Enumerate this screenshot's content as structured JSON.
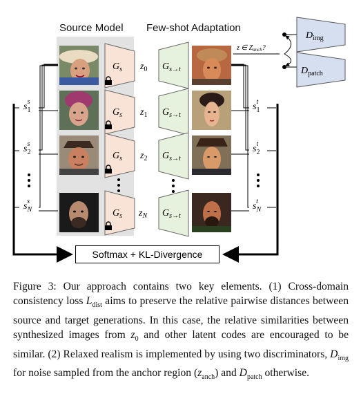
{
  "figure": {
    "source_header": "Source Model",
    "adapt_header": "Few-shot Adaptation",
    "gen_source": "G",
    "gen_source_sub": "s",
    "gen_adapt": "G",
    "gen_adapt_sub": "s→t",
    "latents": [
      {
        "base": "z",
        "sub": "0"
      },
      {
        "base": "z",
        "sub": "1"
      },
      {
        "base": "z",
        "sub": "2"
      },
      {
        "base": "z",
        "sub": "N"
      }
    ],
    "source_sims": [
      {
        "base": "s",
        "sub": "1",
        "sup": "s"
      },
      {
        "base": "s",
        "sub": "2",
        "sup": "s"
      },
      {
        "base": "s",
        "sub": "N",
        "sup": "s"
      }
    ],
    "target_sims": [
      {
        "base": "s",
        "sub": "1",
        "sup": "t"
      },
      {
        "base": "s",
        "sub": "2",
        "sup": "t"
      },
      {
        "base": "s",
        "sub": "N",
        "sup": "t"
      }
    ],
    "loss_box": "Softmax + KL-Divergence",
    "condition": "z ∈ Z",
    "condition_sub": "anch",
    "condition_q": "?",
    "disc_img": "D",
    "disc_img_sub": "img",
    "disc_patch": "D",
    "disc_patch_sub": "patch",
    "colors": {
      "source_panel": "#e2e2e2",
      "source_gen": "#f9e3d6",
      "adapt_gen": "#e6f1de",
      "disc": "#d6dff0"
    }
  },
  "caption": {
    "label": "Figure 3:",
    "t1": " Our approach contains two key elements.  (1) Cross-domain consistency loss ",
    "loss_sym": "L",
    "loss_sub": "dist",
    "t2": " aims to preserve the relative pairwise distances between source and target generations. In this case, the relative similarities between synthesized images from ",
    "z0": "z",
    "z0_sub": "0",
    "t3": " and other latent codes are encouraged to be similar. (2) Relaxed realism is implemented by using two discriminators, ",
    "dimg": "D",
    "dimg_sub": "img",
    "t4": " for noise sampled from the anchor region (",
    "zanch": "z",
    "zanch_sub": "anch",
    "t5": ") and ",
    "dpatch": "D",
    "dpatch_sub": "patch",
    "t6": " otherwise."
  }
}
